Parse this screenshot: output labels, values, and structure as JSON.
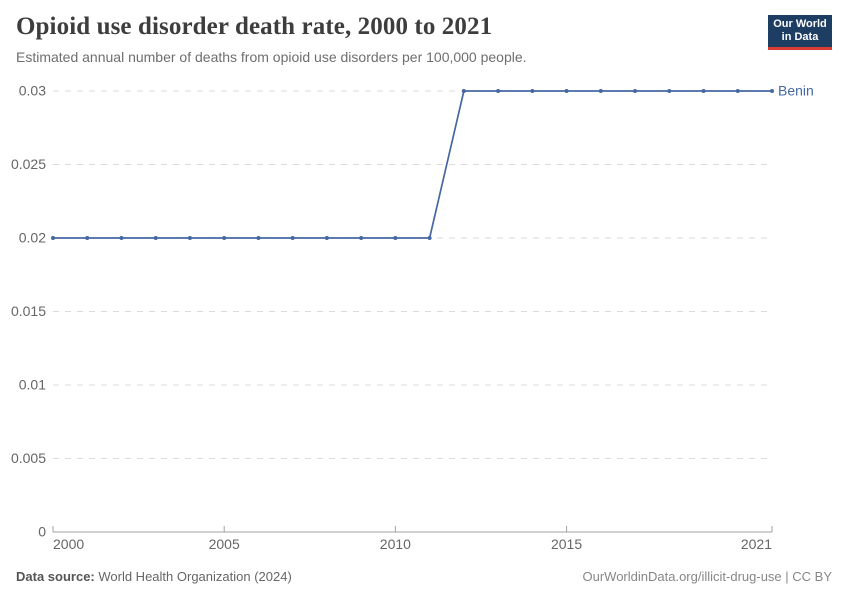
{
  "header": {
    "title": "Opioid use disorder death rate, 2000 to 2021",
    "subtitle": "Estimated annual number of deaths from opioid use disorders per 100,000 people.",
    "logo": {
      "line1": "Our World",
      "line2": "in Data",
      "bg_color": "#1d3d63",
      "stripe_color": "#dc3d33"
    }
  },
  "footer": {
    "source_label": "Data source:",
    "source_value": " World Health Organization (2024)",
    "link_text": "OurWorldinData.org/illicit-drug-use | CC BY"
  },
  "chart_data": {
    "type": "line",
    "title": "Opioid use disorder death rate, 2000 to 2021",
    "subtitle": "Estimated annual number of deaths from opioid use disorders per 100,000 people.",
    "x": [
      2000,
      2001,
      2002,
      2003,
      2004,
      2005,
      2006,
      2007,
      2008,
      2009,
      2010,
      2011,
      2012,
      2013,
      2014,
      2015,
      2016,
      2017,
      2018,
      2019,
      2020,
      2021
    ],
    "series": [
      {
        "name": "Benin",
        "color": "#4668a2",
        "values": [
          0.02,
          0.02,
          0.02,
          0.02,
          0.02,
          0.02,
          0.02,
          0.02,
          0.02,
          0.02,
          0.02,
          0.02,
          0.03,
          0.03,
          0.03,
          0.03,
          0.03,
          0.03,
          0.03,
          0.03,
          0.03,
          0.03
        ]
      }
    ],
    "xlim": [
      2000,
      2021
    ],
    "ylim": [
      0,
      0.03
    ],
    "xticks": [
      {
        "value": 2000,
        "label": "2000"
      },
      {
        "value": 2005,
        "label": "2005"
      },
      {
        "value": 2010,
        "label": "2010"
      },
      {
        "value": 2015,
        "label": "2015"
      },
      {
        "value": 2021,
        "label": "2021"
      }
    ],
    "yticks": [
      {
        "value": 0,
        "label": "0"
      },
      {
        "value": 0.005,
        "label": "0.005"
      },
      {
        "value": 0.01,
        "label": "0.01"
      },
      {
        "value": 0.015,
        "label": "0.015"
      },
      {
        "value": 0.02,
        "label": "0.02"
      },
      {
        "value": 0.025,
        "label": "0.025"
      },
      {
        "value": 0.03,
        "label": "0.03"
      }
    ],
    "grid": "horizontal-dashed",
    "legend_position": "right-of-line-end",
    "marker": "dot"
  }
}
